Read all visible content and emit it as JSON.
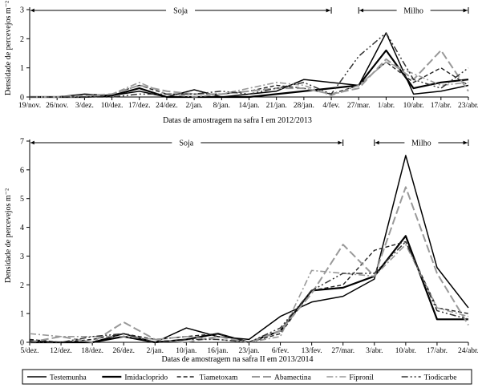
{
  "legend": {
    "entries": [
      {
        "label": "Testemunha",
        "color": "#000000",
        "dash": "solid",
        "width": 1.5
      },
      {
        "label": "Imidacloprido",
        "color": "#000000",
        "dash": "solid",
        "width": 2.2
      },
      {
        "label": "Tiametoxam",
        "color": "#222222",
        "dash": "dashed",
        "width": 1.4
      },
      {
        "label": "Abamectina",
        "color": "#999999",
        "dash": "longdash",
        "width": 2.0
      },
      {
        "label": "Fipronil",
        "color": "#999999",
        "dash": "dashdot",
        "width": 1.6
      },
      {
        "label": "Tiodicarbe",
        "color": "#333333",
        "dash": "dashdotdot",
        "width": 1.5
      }
    ]
  },
  "chart_data": [
    {
      "type": "line",
      "ylabel": "Densidade de percevejos m⁻²",
      "xlabel": "Datas de amostragem na safra I em 2012/2013",
      "ylim": [
        0,
        3
      ],
      "yticks": [
        0,
        1,
        2,
        3
      ],
      "categories": [
        "19/nov.",
        "26/nov.",
        "3/dez.",
        "10/dez.",
        "17/dez.",
        "24/dez.",
        "2/jan.",
        "8/jan.",
        "14/jan.",
        "21/jan.",
        "28/jan.",
        "4/fev.",
        "27/mar.",
        "1/abr.",
        "10/abr.",
        "17/abr.",
        "23/abr."
      ],
      "periods": [
        {
          "label": "Soja",
          "from": "19/nov.",
          "to": "4/fev."
        },
        {
          "label": "Milho",
          "from": "27/mar.",
          "to": "23/abr."
        }
      ],
      "series": [
        {
          "name": "Testemunha",
          "values": [
            0,
            0,
            0.1,
            0.05,
            0.2,
            0,
            0.25,
            0,
            0.1,
            0.2,
            0.6,
            0.5,
            0.4,
            2.2,
            0.1,
            0.2,
            0.4
          ]
        },
        {
          "name": "Imidacloprido",
          "values": [
            0,
            0,
            0,
            0.05,
            0.3,
            0,
            0,
            0,
            0,
            0.1,
            0.2,
            0.3,
            0.4,
            1.6,
            0.3,
            0.5,
            0.6
          ]
        },
        {
          "name": "Tiametoxam",
          "values": [
            0,
            0,
            0,
            0.1,
            0.4,
            0.1,
            0.1,
            0.1,
            0.2,
            0.4,
            0.3,
            0.1,
            0.4,
            1.2,
            0.5,
            1.0,
            0.4
          ]
        },
        {
          "name": "Abamectina",
          "values": [
            0,
            0,
            0.05,
            0.1,
            0.4,
            0.2,
            0.1,
            0.1,
            0.2,
            0.3,
            0.3,
            0.1,
            0.3,
            1.3,
            0.6,
            1.6,
            0.2
          ]
        },
        {
          "name": "Fipronil",
          "values": [
            0,
            0,
            0,
            0.1,
            0.5,
            0.1,
            0,
            0.1,
            0.3,
            0.5,
            0.4,
            0.05,
            0.4,
            1.2,
            0.8,
            0.4,
            0.5
          ]
        },
        {
          "name": "Tiodicarbe",
          "values": [
            0,
            0,
            0,
            0,
            0.1,
            0.1,
            0.1,
            0.2,
            0.1,
            0.3,
            0.5,
            0.1,
            1.4,
            2.2,
            0.6,
            0.3,
            1.0
          ]
        }
      ]
    },
    {
      "type": "line",
      "ylabel": "Densidade de percevejos m⁻²",
      "xlabel": "Datas de amostragem na safra II em 2013/2014",
      "ylim": [
        0,
        7
      ],
      "yticks": [
        0,
        1,
        2,
        3,
        4,
        5,
        6,
        7
      ],
      "categories": [
        "5/dez.",
        "12/dez.",
        "18/dez.",
        "26/dez.",
        "2/jan.",
        "10/jan.",
        "16/jan.",
        "23/jan.",
        "6/fev.",
        "13/fev.",
        "27/mar.",
        "3/abr.",
        "10/abr.",
        "17/abr.",
        "24/abr."
      ],
      "periods": [
        {
          "label": "Soja",
          "from": "5/dez.",
          "to": "27/mar."
        },
        {
          "label": "Milho",
          "from": "3/abr.",
          "to": "24/abr."
        }
      ],
      "series": [
        {
          "name": "Testemunha",
          "values": [
            0.05,
            0,
            0,
            0.3,
            0,
            0.5,
            0.2,
            0.1,
            0.9,
            1.4,
            1.6,
            2.2,
            6.5,
            2.6,
            1.2
          ]
        },
        {
          "name": "Imidacloprido",
          "values": [
            0,
            0,
            0,
            0.2,
            0,
            0.1,
            0.3,
            0,
            0.4,
            1.8,
            1.9,
            2.3,
            3.7,
            0.8,
            0.8
          ]
        },
        {
          "name": "Tiametoxam",
          "values": [
            0.1,
            0,
            0.1,
            0.3,
            0.1,
            0.2,
            0.3,
            0,
            0.3,
            1.8,
            2.0,
            3.2,
            3.5,
            1.2,
            1.0
          ]
        },
        {
          "name": "Abamectina",
          "values": [
            0,
            0.2,
            0,
            0.7,
            0.1,
            0,
            0.2,
            0,
            0.4,
            1.7,
            3.4,
            2.3,
            5.4,
            2.4,
            0.6
          ]
        },
        {
          "name": "Fipronil",
          "values": [
            0.3,
            0.2,
            0.2,
            0.2,
            0.1,
            0.2,
            0.1,
            0,
            0.2,
            2.5,
            2.4,
            2.3,
            3.4,
            1.2,
            0.9
          ]
        },
        {
          "name": "Tiodicarbe",
          "values": [
            0,
            0,
            0.2,
            0.3,
            0,
            0.1,
            0.1,
            0,
            0.5,
            1.8,
            2.4,
            2.4,
            3.5,
            1.1,
            0.8
          ]
        }
      ]
    }
  ]
}
